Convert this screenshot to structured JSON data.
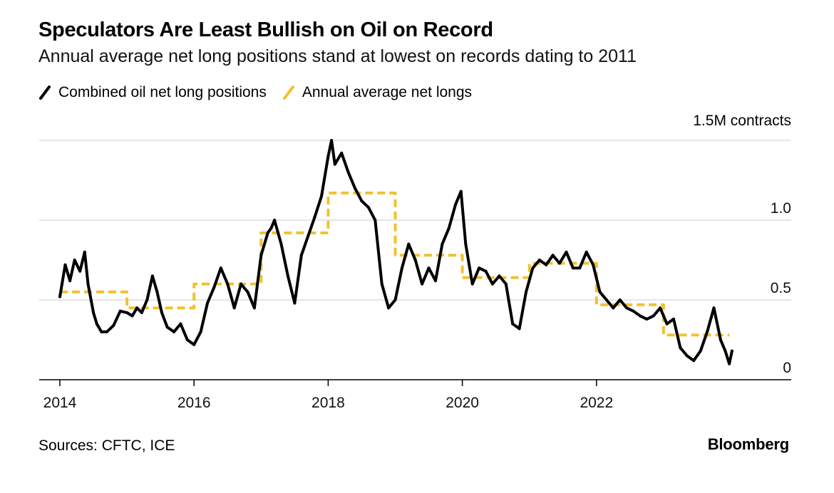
{
  "header": {
    "title": "Speculators Are Least Bullish on Oil on Record",
    "subtitle": "Annual average net long positions stand at lowest on records dating to 2011"
  },
  "footer": {
    "source": "Sources: CFTC, ICE",
    "brand": "Bloomberg"
  },
  "colors": {
    "combined": "#000000",
    "annual": "#f2c12e",
    "grid": "#cccccc",
    "axis": "#000000"
  },
  "chart_data": {
    "type": "line",
    "title": "Speculators Are Least Bullish on Oil on Record",
    "subtitle": "Annual average net long positions stand at lowest on records dating to 2011",
    "unit_label": "1.5M contracts",
    "xlim": [
      2014,
      2024.5
    ],
    "ylim": [
      0,
      1.5
    ],
    "x_ticks": [
      2014,
      2016,
      2018,
      2020,
      2022
    ],
    "x_tick_labels": [
      "2014",
      "2016",
      "2018",
      "2020",
      "2022"
    ],
    "y_ticks": [
      0,
      0.5,
      1.0,
      1.5
    ],
    "y_tick_labels": [
      "0",
      "0.5",
      "1.0",
      "1.5M contracts"
    ],
    "grid": true,
    "legend_position": "top-left",
    "series": [
      {
        "name": "Combined oil net long positions",
        "style": "solid",
        "x": [
          2014.0,
          2014.08,
          2014.15,
          2014.22,
          2014.3,
          2014.37,
          2014.42,
          2014.5,
          2014.55,
          2014.62,
          2014.7,
          2014.8,
          2014.9,
          2015.0,
          2015.08,
          2015.15,
          2015.22,
          2015.3,
          2015.38,
          2015.45,
          2015.52,
          2015.6,
          2015.7,
          2015.8,
          2015.9,
          2016.0,
          2016.1,
          2016.2,
          2016.3,
          2016.4,
          2016.5,
          2016.6,
          2016.7,
          2016.8,
          2016.9,
          2017.0,
          2017.1,
          2017.15,
          2017.2,
          2017.3,
          2017.4,
          2017.5,
          2017.6,
          2017.7,
          2017.8,
          2017.9,
          2018.0,
          2018.05,
          2018.1,
          2018.2,
          2018.3,
          2018.4,
          2018.5,
          2018.6,
          2018.7,
          2018.8,
          2018.9,
          2019.0,
          2019.1,
          2019.2,
          2019.3,
          2019.4,
          2019.5,
          2019.6,
          2019.7,
          2019.8,
          2019.9,
          2019.98,
          2020.05,
          2020.15,
          2020.25,
          2020.35,
          2020.45,
          2020.55,
          2020.65,
          2020.75,
          2020.85,
          2020.95,
          2021.05,
          2021.15,
          2021.25,
          2021.35,
          2021.45,
          2021.55,
          2021.65,
          2021.75,
          2021.85,
          2021.95,
          2022.05,
          2022.15,
          2022.25,
          2022.35,
          2022.45,
          2022.55,
          2022.65,
          2022.75,
          2022.85,
          2022.95,
          2023.05,
          2023.15,
          2023.25,
          2023.35,
          2023.45,
          2023.55,
          2023.65,
          2023.75,
          2023.85,
          2023.92,
          2023.98,
          2024.02
        ],
        "values": [
          0.52,
          0.72,
          0.62,
          0.75,
          0.68,
          0.8,
          0.6,
          0.42,
          0.35,
          0.3,
          0.3,
          0.34,
          0.43,
          0.42,
          0.4,
          0.45,
          0.42,
          0.5,
          0.65,
          0.55,
          0.42,
          0.33,
          0.3,
          0.35,
          0.25,
          0.22,
          0.3,
          0.48,
          0.58,
          0.7,
          0.6,
          0.45,
          0.6,
          0.55,
          0.45,
          0.78,
          0.92,
          0.95,
          1.0,
          0.85,
          0.65,
          0.48,
          0.78,
          0.9,
          1.02,
          1.15,
          1.4,
          1.5,
          1.35,
          1.42,
          1.3,
          1.2,
          1.12,
          1.08,
          1.0,
          0.6,
          0.45,
          0.5,
          0.7,
          0.85,
          0.75,
          0.6,
          0.7,
          0.62,
          0.85,
          0.95,
          1.1,
          1.18,
          0.85,
          0.6,
          0.7,
          0.68,
          0.6,
          0.65,
          0.6,
          0.35,
          0.32,
          0.55,
          0.7,
          0.75,
          0.72,
          0.78,
          0.73,
          0.8,
          0.7,
          0.7,
          0.8,
          0.72,
          0.55,
          0.5,
          0.45,
          0.5,
          0.45,
          0.43,
          0.4,
          0.38,
          0.4,
          0.45,
          0.35,
          0.38,
          0.2,
          0.15,
          0.12,
          0.18,
          0.3,
          0.45,
          0.25,
          0.18,
          0.1,
          0.18
        ]
      },
      {
        "name": "Annual average net longs",
        "style": "dashed-step",
        "x": [
          2014,
          2015,
          2016,
          2017,
          2018,
          2019,
          2020,
          2021,
          2022,
          2023,
          2024
        ],
        "values": [
          0.55,
          0.45,
          0.6,
          0.92,
          1.17,
          0.78,
          0.64,
          0.73,
          0.47,
          0.28,
          0.28
        ]
      }
    ]
  }
}
